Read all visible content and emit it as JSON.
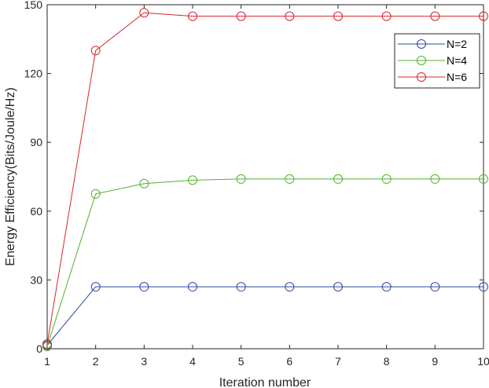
{
  "chart_data": {
    "type": "line",
    "xlabel": "Iteration number",
    "ylabel": "Energy Efficiency(Bits/Joule/Hz)",
    "xlim": [
      1,
      10
    ],
    "ylim": [
      0,
      150
    ],
    "xticks": [
      1,
      2,
      3,
      4,
      5,
      6,
      7,
      8,
      9,
      10
    ],
    "yticks": [
      0,
      30,
      60,
      90,
      120,
      150
    ],
    "grid": false,
    "legend_position": "top-right",
    "x": [
      1,
      2,
      3,
      4,
      5,
      6,
      7,
      8,
      9,
      10
    ],
    "series": [
      {
        "name": "N=2",
        "color": "#2a4b9e",
        "marker": "circle",
        "values": [
          1.5,
          27,
          27,
          27,
          27,
          27,
          27,
          27,
          27,
          27
        ]
      },
      {
        "name": "N=4",
        "color": "#4fb12e",
        "marker": "circle",
        "values": [
          1,
          67.5,
          72,
          73.5,
          74,
          74,
          74,
          74,
          74,
          74
        ]
      },
      {
        "name": "N=6",
        "color": "#d9242b",
        "marker": "circle",
        "values": [
          2,
          130,
          146.5,
          145,
          145,
          145,
          145,
          145,
          145,
          145
        ]
      }
    ]
  }
}
